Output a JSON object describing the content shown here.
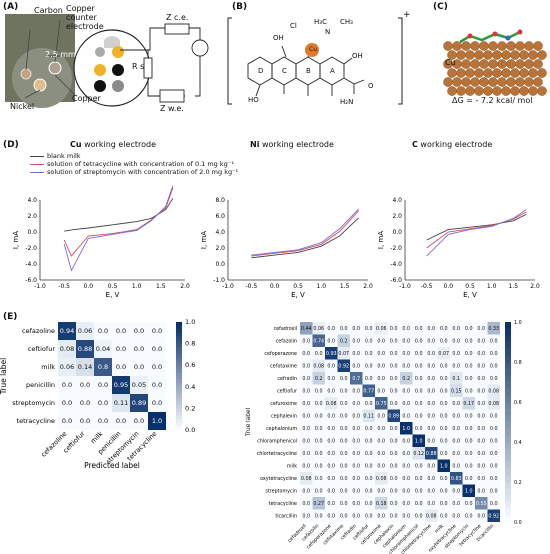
{
  "panels": {
    "A": {
      "label": "(A)",
      "labels": {
        "carbon": "Carbon",
        "counter": "Copper counter electrode",
        "size": "2.5 mm",
        "nickel": "Nickel",
        "copper": "Copper",
        "rs": "R s",
        "zce": "Z c.e.",
        "zwe": "Z w.e."
      }
    },
    "B": {
      "label": "(B)",
      "plus": "+",
      "atoms": {
        "cl": "Cl",
        "oh": "OH",
        "n": "N",
        "ch3a": "H₃C",
        "ch3b": "CH₃",
        "cu": "Cu",
        "ho": "HO",
        "oh2": "OH",
        "nh2": "H₂N",
        "o": "O",
        "d": "D",
        "c": "C",
        "b": "B",
        "a": "A"
      }
    },
    "C": {
      "label": "(C)",
      "cu": "Cu",
      "dg": "ΔG = - 7.2 kcal/ mol"
    },
    "D": {
      "label": "(D)",
      "titles": [
        {
          "bold": "Cu",
          "rest": " working electrode"
        },
        {
          "bold": "Ni",
          "rest": " working electrode"
        },
        {
          "bold": "C",
          "rest": " working electrode"
        }
      ],
      "legend": [
        "blank milk",
        "solution of tetracycline with concentration of 0.1 mg kg⁻¹",
        "solution of streptomycin with concentration of 2.0 mg kg⁻¹"
      ],
      "colors": {
        "blank": "#444444",
        "tetra": "#d94a5c",
        "strep": "#7a6bd6"
      },
      "ylabel": "I, mA",
      "xlabel": "E, V"
    },
    "E": {
      "label": "(E)"
    }
  },
  "chart_data": [
    {
      "type": "line",
      "title": "Cu working electrode",
      "xlabel": "E, V",
      "ylabel": "I, mA",
      "xlim": [
        -1.0,
        2.0
      ],
      "ylim": [
        -6.0,
        4.0
      ],
      "xticks": [
        "-1.0",
        "-0.5",
        "0.0",
        "0.5",
        "1.0",
        "1.5",
        "2.0"
      ],
      "yticks": [
        "4.0",
        "2.0",
        "0.0",
        "-2.0",
        "-4.0",
        "-6.0"
      ],
      "series": [
        {
          "name": "blank milk",
          "x": [
            -0.5,
            -0.3,
            0.0,
            0.5,
            1.0,
            1.3,
            1.6,
            1.75
          ],
          "y": [
            0.1,
            0.3,
            0.5,
            0.9,
            1.3,
            1.7,
            2.8,
            4.2
          ]
        },
        {
          "name": "solution of tetracycline with concentration of 0.1 mg kg⁻¹",
          "x": [
            -0.5,
            -0.35,
            0.0,
            0.5,
            1.0,
            1.3,
            1.6,
            1.75
          ],
          "y": [
            -1.0,
            -3.0,
            -0.5,
            -0.2,
            0.3,
            1.5,
            3.0,
            5.5
          ]
        },
        {
          "name": "solution of streptomycin with concentration of 2.0 mg kg⁻¹",
          "x": [
            -0.5,
            -0.35,
            0.0,
            0.5,
            1.0,
            1.3,
            1.6,
            1.75
          ],
          "y": [
            -1.5,
            -4.8,
            -0.8,
            -0.3,
            0.2,
            1.4,
            3.2,
            5.8
          ]
        }
      ]
    },
    {
      "type": "line",
      "title": "Ni working electrode",
      "xlabel": "E, V",
      "ylabel": "I, mA",
      "xlim": [
        -1.0,
        2.0
      ],
      "ylim": [
        -1.0,
        8.0
      ],
      "xticks": [
        "-1.0",
        "-0.5",
        "0.0",
        "0.5",
        "1.0",
        "1.5",
        "2.0"
      ],
      "yticks": [
        "8.0",
        "6.0",
        "4.0",
        "2.0",
        "0.0",
        "-1.0"
      ],
      "series": [
        {
          "name": "blank milk",
          "x": [
            -0.5,
            0.0,
            0.5,
            1.0,
            1.4,
            1.8
          ],
          "y": [
            1.5,
            1.8,
            2.1,
            2.8,
            4.0,
            6.0
          ]
        },
        {
          "name": "solution of tetracycline with concentration of 0.1 mg kg⁻¹",
          "x": [
            -0.5,
            0.0,
            0.5,
            1.0,
            1.4,
            1.8
          ],
          "y": [
            1.7,
            2.0,
            2.3,
            3.0,
            4.5,
            6.8
          ]
        },
        {
          "name": "solution of streptomycin with concentration of 2.0 mg kg⁻¹",
          "x": [
            -0.5,
            0.0,
            0.5,
            1.0,
            1.4,
            1.8
          ],
          "y": [
            1.8,
            2.1,
            2.4,
            3.2,
            4.8,
            7.0
          ]
        }
      ]
    },
    {
      "type": "line",
      "title": "C working electrode",
      "xlabel": "E, V",
      "ylabel": "I, mA",
      "xlim": [
        -1.0,
        2.0
      ],
      "ylim": [
        -6.0,
        4.0
      ],
      "xticks": [
        "-1.0",
        "-0.5",
        "0.0",
        "0.5",
        "1.0",
        "1.5",
        "2.0"
      ],
      "yticks": [
        "4.0",
        "2.0",
        "0.0",
        "-2.0",
        "-4.0",
        "-6.0"
      ],
      "series": [
        {
          "name": "blank milk",
          "x": [
            -0.5,
            0.0,
            0.5,
            1.0,
            1.5,
            1.8
          ],
          "y": [
            -1.0,
            0.3,
            0.6,
            0.9,
            1.4,
            2.2
          ]
        },
        {
          "name": "solution of tetracycline with concentration of 0.1 mg kg⁻¹",
          "x": [
            -0.5,
            0.0,
            0.5,
            1.0,
            1.5,
            1.8
          ],
          "y": [
            -2.0,
            0.0,
            0.4,
            0.8,
            1.6,
            2.5
          ]
        },
        {
          "name": "solution of streptomycin with concentration of 2.0 mg kg⁻¹",
          "x": [
            -0.5,
            0.0,
            0.5,
            1.0,
            1.5,
            1.8
          ],
          "y": [
            -3.0,
            -0.3,
            0.3,
            0.7,
            1.7,
            2.8
          ]
        }
      ]
    },
    {
      "type": "heatmap",
      "xlabel": "Predicted label",
      "ylabel": "True label",
      "labels": [
        "cefazoline",
        "ceftiofur",
        "milk",
        "penicillin",
        "streptomycin",
        "tetracycline"
      ],
      "colorbar": [
        "1.0",
        "0.8",
        "0.6",
        "0.4",
        "0.2",
        "0.0"
      ],
      "values": [
        [
          0.94,
          0.06,
          0.0,
          0.0,
          0.0,
          0.0
        ],
        [
          0.08,
          0.88,
          0.04,
          0.0,
          0.0,
          0.0
        ],
        [
          0.06,
          0.14,
          0.8,
          0.0,
          0.0,
          0.0
        ],
        [
          0.0,
          0.0,
          0.0,
          0.95,
          0.05,
          0.0
        ],
        [
          0.0,
          0.0,
          0.0,
          0.11,
          0.89,
          0.0
        ],
        [
          0.0,
          0.0,
          0.0,
          0.0,
          0.0,
          1.0
        ]
      ]
    },
    {
      "type": "heatmap",
      "xlabel": "Predicted label",
      "ylabel": "True label",
      "labels": [
        "cefadroxil",
        "cefazolin",
        "cefoperazone",
        "cefotaxime",
        "cefradin",
        "ceftiofur",
        "cefuroxime",
        "cephalexin",
        "cephalonium",
        "chloramphenicol",
        "chlortetracycline",
        "milk",
        "oxytetracycline",
        "streptomycin",
        "tetracycline",
        "ticarcillin"
      ],
      "colorbar": [
        "1.0",
        "0.8",
        "0.6",
        "0.4",
        "0.2",
        "0.0"
      ],
      "values": [
        [
          0.44,
          0.06,
          0.0,
          0.0,
          0.0,
          0.0,
          0.06,
          0.0,
          0.0,
          0.0,
          0.0,
          0.0,
          0.0,
          0.0,
          0.0,
          0.33
        ],
        [
          0.0,
          0.74,
          0.0,
          0.2,
          0.0,
          0.0,
          0.0,
          0.0,
          0.0,
          0.0,
          0.0,
          0.0,
          0.0,
          0.0,
          0.0,
          0.0
        ],
        [
          0.0,
          0.0,
          0.93,
          0.07,
          0.0,
          0.0,
          0.0,
          0.0,
          0.0,
          0.0,
          0.0,
          0.07,
          0.0,
          0.0,
          0.0,
          0.0
        ],
        [
          0.0,
          0.08,
          0.0,
          0.92,
          0.0,
          0.0,
          0.0,
          0.0,
          0.0,
          0.0,
          0.0,
          0.0,
          0.0,
          0.0,
          0.0,
          0.0
        ],
        [
          0.0,
          0.2,
          0.0,
          0.0,
          0.7,
          0.0,
          0.0,
          0.0,
          0.2,
          0.0,
          0.0,
          0.0,
          0.1,
          0.0,
          0.0,
          0.0
        ],
        [
          0.0,
          0.0,
          0.0,
          0.0,
          0.0,
          0.77,
          0.0,
          0.0,
          0.0,
          0.0,
          0.0,
          0.0,
          0.15,
          0.0,
          0.0,
          0.08
        ],
        [
          0.0,
          0.0,
          0.08,
          0.0,
          0.0,
          0.0,
          0.75,
          0.0,
          0.0,
          0.0,
          0.0,
          0.0,
          0.0,
          0.17,
          0.0,
          0.08
        ],
        [
          0.0,
          0.0,
          0.0,
          0.0,
          0.0,
          0.11,
          0.0,
          0.89,
          0.0,
          0.0,
          0.0,
          0.0,
          0.0,
          0.0,
          0.0,
          0.0
        ],
        [
          0.0,
          0.0,
          0.0,
          0.0,
          0.0,
          0.0,
          0.0,
          0.0,
          1.0,
          0.0,
          0.0,
          0.0,
          0.0,
          0.0,
          0.0,
          0.0
        ],
        [
          0.0,
          0.0,
          0.0,
          0.0,
          0.0,
          0.0,
          0.0,
          0.0,
          0.0,
          1.0,
          0.0,
          0.0,
          0.0,
          0.0,
          0.0,
          0.0
        ],
        [
          0.0,
          0.0,
          0.0,
          0.0,
          0.0,
          0.0,
          0.0,
          0.0,
          0.0,
          0.12,
          0.88,
          0.0,
          0.0,
          0.0,
          0.0,
          0.0
        ],
        [
          0.0,
          0.0,
          0.0,
          0.0,
          0.0,
          0.0,
          0.0,
          0.0,
          0.0,
          0.0,
          0.0,
          1.0,
          0.0,
          0.0,
          0.0,
          0.0
        ],
        [
          0.08,
          0.0,
          0.0,
          0.0,
          0.0,
          0.0,
          0.08,
          0.0,
          0.0,
          0.0,
          0.0,
          0.0,
          0.83,
          0.0,
          0.0,
          0.0
        ],
        [
          0.0,
          0.0,
          0.0,
          0.0,
          0.0,
          0.0,
          0.0,
          0.0,
          0.0,
          0.0,
          0.0,
          0.0,
          0.0,
          1.0,
          0.0,
          0.0
        ],
        [
          0.0,
          0.27,
          0.0,
          0.0,
          0.0,
          0.0,
          0.18,
          0.0,
          0.0,
          0.0,
          0.0,
          0.0,
          0.0,
          0.0,
          0.55,
          0.0
        ],
        [
          0.0,
          0.0,
          0.0,
          0.0,
          0.0,
          0.0,
          0.0,
          0.0,
          0.0,
          0.0,
          0.08,
          0.0,
          0.0,
          0.0,
          0.0,
          0.92
        ]
      ]
    }
  ]
}
